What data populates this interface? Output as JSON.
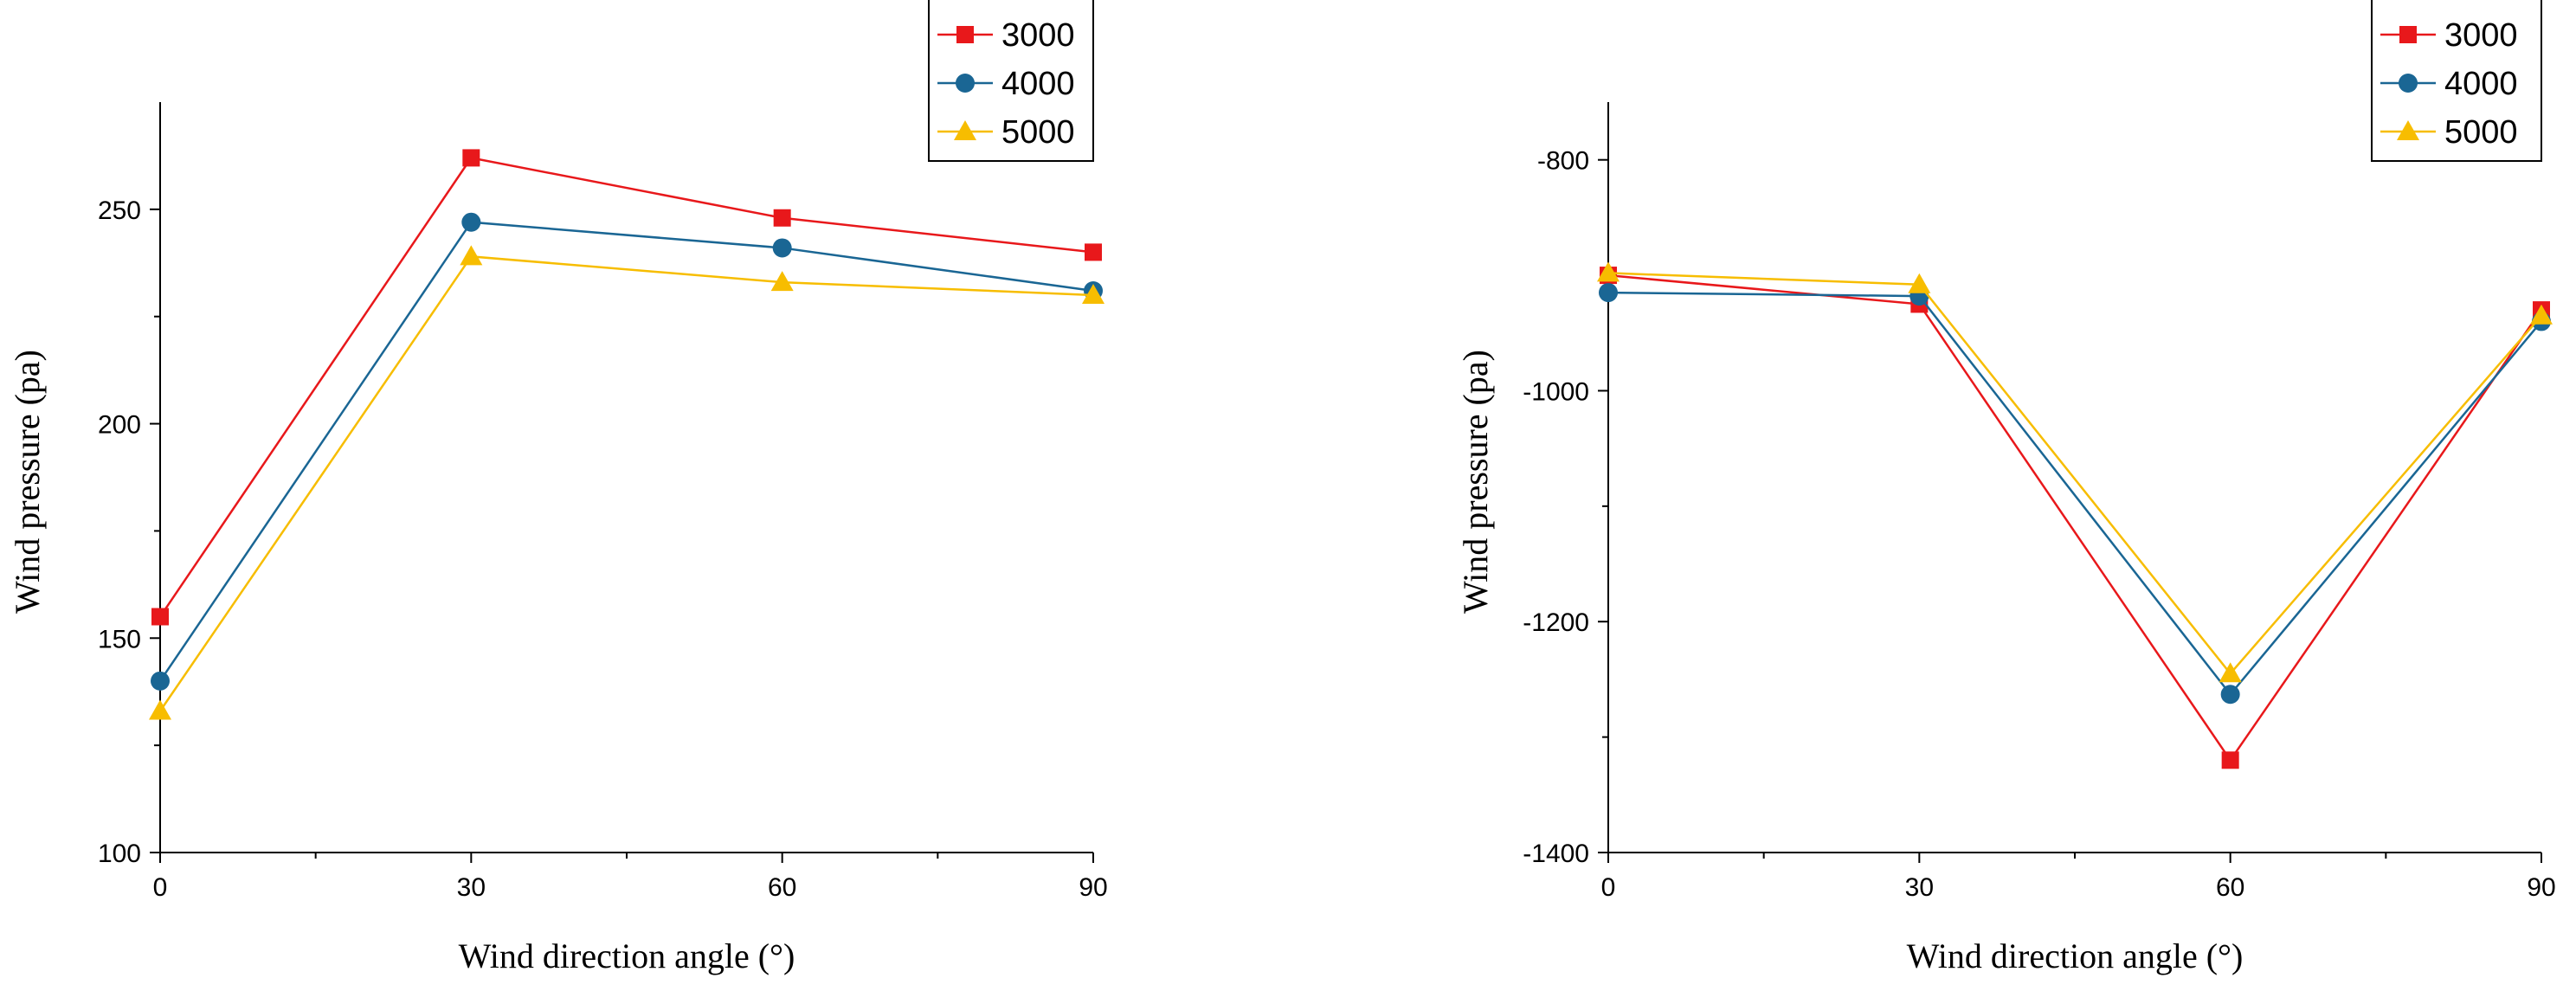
{
  "chart_data": [
    {
      "type": "line",
      "title": "",
      "xlabel": "Wind direction angle (°)",
      "ylabel": "Wind pressure (pa)",
      "x": [
        0,
        30,
        60,
        90
      ],
      "xticks": [
        "0",
        "30",
        "60",
        "90"
      ],
      "xlim": [
        0,
        90
      ],
      "yticks": [
        "100",
        "150",
        "200",
        "250"
      ],
      "ytick_values": [
        100,
        150,
        200,
        250
      ],
      "ylim": [
        100,
        275
      ],
      "grid": false,
      "legend_position": "top-right",
      "series": [
        {
          "name": "3000",
          "color": "#e8181b",
          "marker": "square",
          "values": [
            155,
            262,
            248,
            240
          ]
        },
        {
          "name": "4000",
          "color": "#1a6694",
          "marker": "circle",
          "values": [
            140,
            247,
            241,
            231
          ]
        },
        {
          "name": "5000",
          "color": "#f7bd00",
          "marker": "triangle",
          "values": [
            133,
            239,
            233,
            230
          ]
        }
      ]
    },
    {
      "type": "line",
      "title": "",
      "xlabel": "Wind direction angle (°)",
      "ylabel": "Wind pressure (pa)",
      "x": [
        0,
        30,
        60,
        90
      ],
      "xticks": [
        "0",
        "30",
        "60",
        "90"
      ],
      "xlim": [
        0,
        90
      ],
      "yticks": [
        "-800",
        "-1000",
        "-1200",
        "-1400"
      ],
      "ytick_values": [
        -800,
        -1000,
        -1200,
        -1400
      ],
      "ylim": [
        -1400,
        -750
      ],
      "grid": false,
      "legend_position": "top-right",
      "series": [
        {
          "name": "3000",
          "color": "#e8181b",
          "marker": "square",
          "values": [
            -900,
            -925,
            -1320,
            -930
          ]
        },
        {
          "name": "4000",
          "color": "#1a6694",
          "marker": "circle",
          "values": [
            -915,
            -918,
            -1263,
            -940
          ]
        },
        {
          "name": "5000",
          "color": "#f7bd00",
          "marker": "triangle",
          "values": [
            -898,
            -908,
            -1245,
            -935
          ]
        }
      ]
    }
  ]
}
